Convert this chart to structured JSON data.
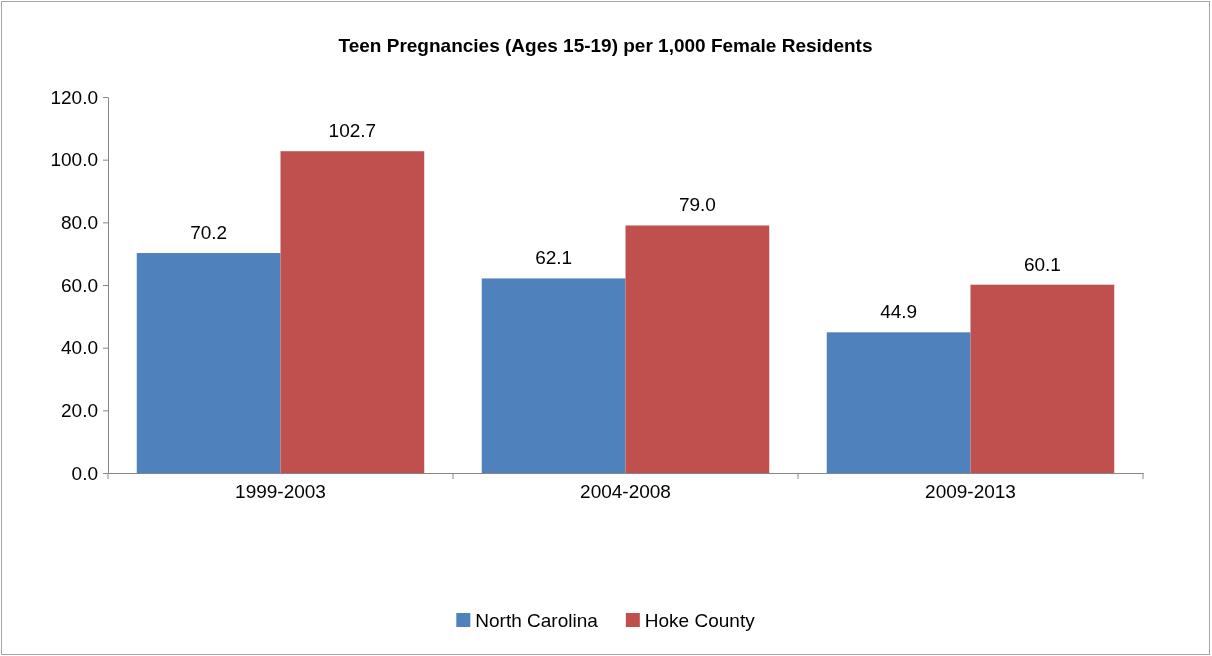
{
  "chart_data": {
    "type": "bar",
    "title": "Teen Pregnancies (Ages 15-19) per 1,000 Female Residents",
    "categories": [
      "1999-2003",
      "2004-2008",
      "2009-2013"
    ],
    "series": [
      {
        "name": "North Carolina",
        "color": "#4f81bd",
        "values": [
          70.2,
          62.1,
          44.9
        ]
      },
      {
        "name": "Hoke County",
        "color": "#c0504d",
        "values": [
          102.7,
          79.0,
          60.1
        ]
      }
    ],
    "ylim": [
      0,
      120
    ],
    "yticks": [
      {
        "value": 0,
        "label": "0.0"
      },
      {
        "value": 20,
        "label": "20.0"
      },
      {
        "value": 40,
        "label": "40.0"
      },
      {
        "value": 60,
        "label": "60.0"
      },
      {
        "value": 80,
        "label": "80.0"
      },
      {
        "value": 100,
        "label": "100.0"
      },
      {
        "value": 120,
        "label": "120.0"
      }
    ],
    "value_labels": [
      [
        "70.2",
        "62.1",
        "44.9"
      ],
      [
        "102.7",
        "79.0",
        "60.1"
      ]
    ],
    "grid": false,
    "legend": "bottom"
  }
}
